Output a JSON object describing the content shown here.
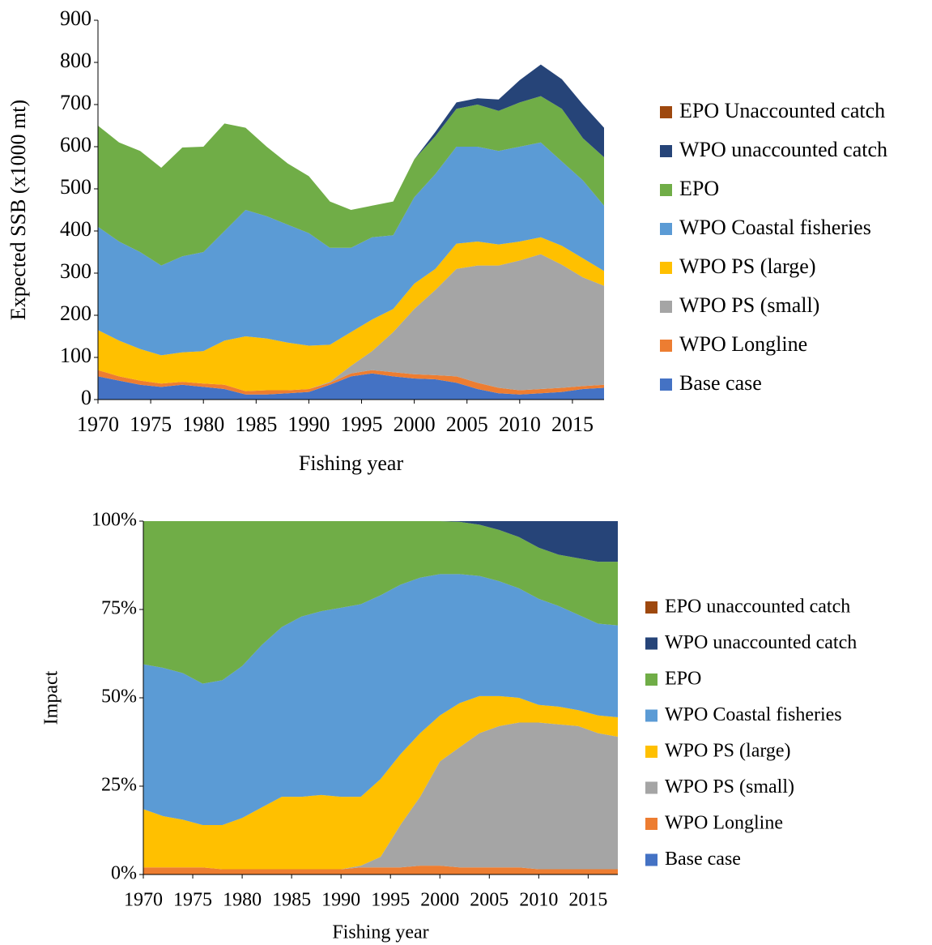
{
  "chart_data": [
    {
      "type": "stacked_area",
      "x_label": "Fishing year",
      "y_label": "Expected SSB (x1000 mt)",
      "x": [
        1970,
        1972,
        1974,
        1976,
        1978,
        1980,
        1982,
        1984,
        1986,
        1988,
        1990,
        1992,
        1994,
        1996,
        1998,
        2000,
        2002,
        2004,
        2006,
        2008,
        2010,
        2012,
        2014,
        2016,
        2018
      ],
      "xlim": [
        1970,
        2018
      ],
      "xticks": [
        1970,
        1975,
        1980,
        1985,
        1990,
        1995,
        2000,
        2005,
        2010,
        2015
      ],
      "ylim": [
        0,
        900
      ],
      "yticks": [
        0,
        100,
        200,
        300,
        400,
        500,
        600,
        700,
        800,
        900
      ],
      "legend": "right",
      "series": [
        {
          "name": "Base case",
          "color": "#4472c4",
          "values": [
            55,
            45,
            35,
            30,
            35,
            30,
            25,
            12,
            12,
            15,
            18,
            35,
            55,
            62,
            55,
            50,
            48,
            40,
            25,
            15,
            12,
            15,
            18,
            25,
            28
          ]
        },
        {
          "name": "WPO Longline",
          "color": "#ed7d31",
          "values": [
            15,
            10,
            10,
            8,
            7,
            8,
            10,
            8,
            10,
            7,
            7,
            5,
            7,
            8,
            10,
            10,
            10,
            15,
            15,
            13,
            10,
            10,
            10,
            7,
            7
          ]
        },
        {
          "name": "WPO PS (small)",
          "color": "#a5a5a5",
          "values": [
            0,
            0,
            0,
            0,
            0,
            0,
            0,
            0,
            0,
            0,
            0,
            2,
            18,
            45,
            95,
            155,
            202,
            255,
            278,
            290,
            308,
            320,
            292,
            258,
            235
          ]
        },
        {
          "name": "WPO PS (large)",
          "color": "#ffc000",
          "values": [
            95,
            85,
            75,
            67,
            70,
            77,
            105,
            130,
            123,
            113,
            103,
            88,
            80,
            75,
            55,
            60,
            50,
            60,
            57,
            50,
            45,
            40,
            45,
            45,
            35
          ]
        },
        {
          "name": "WPO Coastal fisheries",
          "color": "#5b9bd5",
          "values": [
            245,
            235,
            230,
            213,
            228,
            235,
            260,
            300,
            290,
            280,
            267,
            230,
            200,
            195,
            175,
            205,
            225,
            230,
            225,
            222,
            225,
            225,
            200,
            185,
            155
          ]
        },
        {
          "name": "EPO",
          "color": "#70ad47",
          "values": [
            240,
            235,
            240,
            232,
            258,
            250,
            255,
            195,
            165,
            145,
            135,
            110,
            90,
            75,
            80,
            90,
            90,
            90,
            100,
            95,
            105,
            110,
            125,
            100,
            115
          ]
        },
        {
          "name": "WPO unaccounted catch",
          "color": "#264478",
          "values": [
            0,
            0,
            0,
            0,
            0,
            0,
            0,
            0,
            0,
            0,
            0,
            0,
            0,
            0,
            0,
            0,
            10,
            15,
            15,
            27,
            53,
            75,
            70,
            80,
            70
          ]
        },
        {
          "name": "EPO Unaccounted catch",
          "color": "#9e480e",
          "values": [
            0,
            0,
            0,
            0,
            0,
            0,
            0,
            0,
            0,
            0,
            0,
            0,
            0,
            0,
            0,
            0,
            0,
            0,
            0,
            0,
            0,
            0,
            0,
            0,
            0
          ]
        }
      ]
    },
    {
      "type": "stacked_area",
      "x_label": "Fishing year",
      "y_label": "Impact",
      "x": [
        1970,
        1972,
        1974,
        1976,
        1978,
        1980,
        1982,
        1984,
        1986,
        1988,
        1990,
        1992,
        1994,
        1996,
        1998,
        2000,
        2002,
        2004,
        2006,
        2008,
        2010,
        2012,
        2014,
        2016,
        2018
      ],
      "xlim": [
        1970,
        2018
      ],
      "xticks": [
        1970,
        1975,
        1980,
        1985,
        1990,
        1995,
        2000,
        2005,
        2010,
        2015
      ],
      "ylim": [
        0,
        100
      ],
      "yticks": [
        {
          "value": 0,
          "label": "0%"
        },
        {
          "value": 25,
          "label": "25%"
        },
        {
          "value": 50,
          "label": "50%"
        },
        {
          "value": 75,
          "label": "75%"
        },
        {
          "value": 100,
          "label": "100%"
        }
      ],
      "legend": "right",
      "series": [
        {
          "name": "Base case",
          "color": "#4472c4",
          "values": [
            0,
            0,
            0,
            0,
            0,
            0,
            0,
            0,
            0,
            0,
            0,
            0,
            0,
            0,
            0,
            0,
            0,
            0,
            0,
            0,
            0,
            0,
            0,
            0,
            0
          ]
        },
        {
          "name": "WPO Longline",
          "color": "#ed7d31",
          "values": [
            2,
            2,
            2,
            2,
            1.5,
            1.5,
            1.5,
            1.5,
            1.5,
            1.5,
            1.5,
            2,
            2,
            2,
            2.5,
            2.5,
            2,
            2,
            2,
            2,
            1.5,
            1.5,
            1.5,
            1.5,
            1.5
          ]
        },
        {
          "name": "WPO PS (small)",
          "color": "#a5a5a5",
          "values": [
            0,
            0,
            0,
            0,
            0,
            0,
            0,
            0,
            0,
            0,
            0,
            0.5,
            3,
            12,
            19.5,
            29.5,
            34,
            38,
            40,
            41,
            41.5,
            41,
            40.5,
            38.5,
            37.5
          ]
        },
        {
          "name": "WPO PS (large)",
          "color": "#ffc000",
          "values": [
            16.5,
            14.5,
            13.5,
            12,
            12.5,
            14.5,
            17.5,
            20.5,
            20.5,
            21,
            20.5,
            19.5,
            22,
            20,
            18,
            13,
            12.5,
            10.5,
            8.5,
            7,
            5,
            5,
            4.5,
            5,
            5.5
          ]
        },
        {
          "name": "WPO Coastal fisheries",
          "color": "#5b9bd5",
          "values": [
            41,
            42,
            41.5,
            40,
            41,
            43,
            46,
            48,
            51,
            52,
            53.5,
            54.5,
            52,
            48,
            44,
            40,
            36.5,
            34,
            32.5,
            31,
            30,
            28.5,
            27,
            26,
            26
          ]
        },
        {
          "name": "EPO",
          "color": "#70ad47",
          "values": [
            40.5,
            41.5,
            43,
            46,
            45,
            41,
            35,
            30,
            27,
            25.5,
            24.5,
            23.5,
            21,
            18,
            16,
            15,
            14.8,
            14.5,
            14.5,
            14.5,
            14.5,
            14.5,
            16,
            17.5,
            18
          ]
        },
        {
          "name": "WPO unaccounted catch",
          "color": "#264478",
          "values": [
            0,
            0,
            0,
            0,
            0,
            0,
            0,
            0,
            0,
            0,
            0,
            0,
            0,
            0,
            0,
            0,
            0.2,
            1,
            2.5,
            4.5,
            7.5,
            9.5,
            10.5,
            11.5,
            11.5
          ]
        },
        {
          "name": "EPO unaccounted catch",
          "color": "#9e480e",
          "values": [
            0,
            0,
            0,
            0,
            0,
            0,
            0,
            0,
            0,
            0,
            0,
            0,
            0,
            0,
            0,
            0,
            0,
            0,
            0,
            0,
            0,
            0,
            0,
            0,
            0
          ]
        }
      ]
    }
  ]
}
